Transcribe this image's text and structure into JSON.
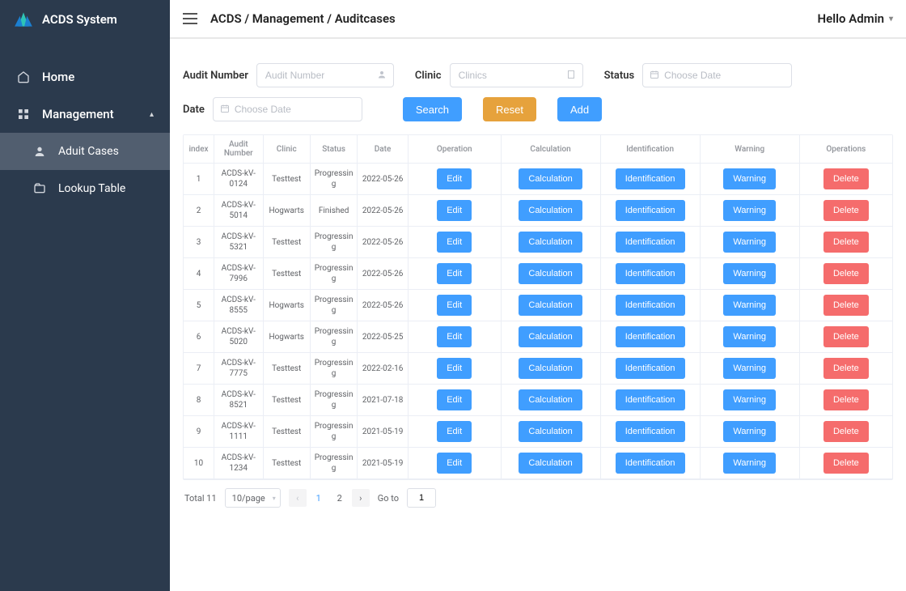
{
  "app": {
    "name": "ACDS System"
  },
  "nav": {
    "home": "Home",
    "management": "Management",
    "audit_cases": "Aduit Cases",
    "lookup_table": "Lookup Table"
  },
  "topbar": {
    "breadcrumb": "ACDS / Management / Auditcases",
    "greeting": "Hello Admin"
  },
  "filters": {
    "audit_number_label": "Audit Number",
    "audit_number_placeholder": "Audit Number",
    "clinic_label": "Clinic",
    "clinic_placeholder": "Clinics",
    "status_label": "Status",
    "status_placeholder": "Choose Date",
    "date_label": "Date",
    "date_placeholder": "Choose Date",
    "search_btn": "Search",
    "reset_btn": "Reset",
    "add_btn": "Add"
  },
  "table": {
    "columns": {
      "index": "index",
      "audit_number": "Audit Number",
      "clinic": "Clinic",
      "status": "Status",
      "date": "Date",
      "operation": "Operation",
      "calculation": "Calculation",
      "identification": "Identification",
      "warning": "Warning",
      "operations": "Operations"
    },
    "btns": {
      "edit": "Edit",
      "calculation": "Calculation",
      "identification": "Identification",
      "warning": "Warning",
      "delete": "Delete"
    },
    "rows": [
      {
        "index": "1",
        "audit_number": "ACDS-kV-0124",
        "clinic": "Testtest",
        "status": "Progressing",
        "date": "2022-05-26"
      },
      {
        "index": "2",
        "audit_number": "ACDS-kV-5014",
        "clinic": "Hogwarts",
        "status": "Finished",
        "date": "2022-05-26"
      },
      {
        "index": "3",
        "audit_number": "ACDS-kV-5321",
        "clinic": "Testtest",
        "status": "Progressing",
        "date": "2022-05-26"
      },
      {
        "index": "4",
        "audit_number": "ACDS-kV-7996",
        "clinic": "Testtest",
        "status": "Progressing",
        "date": "2022-05-26"
      },
      {
        "index": "5",
        "audit_number": "ACDS-kV-8555",
        "clinic": "Hogwarts",
        "status": "Progressing",
        "date": "2022-05-26"
      },
      {
        "index": "6",
        "audit_number": "ACDS-kV-5020",
        "clinic": "Hogwarts",
        "status": "Progressing",
        "date": "2022-05-25"
      },
      {
        "index": "7",
        "audit_number": "ACDS-kV-7775",
        "clinic": "Testtest",
        "status": "Progressing",
        "date": "2022-02-16"
      },
      {
        "index": "8",
        "audit_number": "ACDS-kV-8521",
        "clinic": "Testtest",
        "status": "Progressing",
        "date": "2021-07-18"
      },
      {
        "index": "9",
        "audit_number": "ACDS-kV-1111",
        "clinic": "Testtest",
        "status": "Progressing",
        "date": "2021-05-19"
      },
      {
        "index": "10",
        "audit_number": "ACDS-kV-1234",
        "clinic": "Testtest",
        "status": "Progressing",
        "date": "2021-05-19"
      }
    ]
  },
  "pagination": {
    "total_label": "Total 11",
    "page_size": "10/page",
    "pages": [
      "1",
      "2"
    ],
    "current_page": "1",
    "goto_label": "Go to",
    "goto_value": "1"
  },
  "colors": {
    "sidebar_bg": "#2b3a4d",
    "primary": "#409eff",
    "warning": "#e6a23c",
    "danger": "#f56c6c",
    "border": "#ebeef5",
    "text_muted": "#909399"
  }
}
